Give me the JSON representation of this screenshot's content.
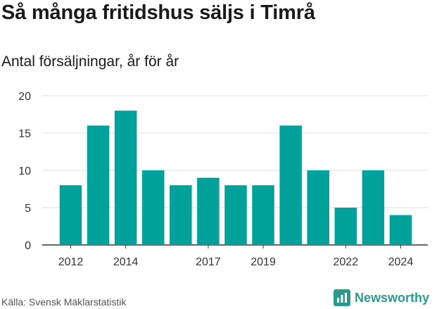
{
  "header": {
    "title": "Så många fritidshus säljs i Timrå",
    "subtitle": "Antal försäljningar, år för år"
  },
  "footer": {
    "source": "Källa: Svensk Mäklarstatistik",
    "brand": "Newsworthy",
    "brand_icon": "newsworthy-logo-icon"
  },
  "colors": {
    "bar": "#00a19a",
    "grid": "#dddddd",
    "axis": "#333333",
    "brand": "#2a9a8f"
  },
  "chart_data": {
    "type": "bar",
    "x": [
      2012,
      2013,
      2014,
      2015,
      2016,
      2017,
      2018,
      2019,
      2020,
      2021,
      2022,
      2023,
      2024
    ],
    "values": [
      8,
      16,
      18,
      10,
      8,
      9,
      8,
      8,
      16,
      10,
      5,
      10,
      4
    ],
    "xticks": [
      "2012",
      "2014",
      "2017",
      "2019",
      "2022",
      "2024"
    ],
    "yticks": [
      "0",
      "5",
      "10",
      "15",
      "20"
    ],
    "ylim": [
      0,
      20
    ],
    "grid": true
  }
}
